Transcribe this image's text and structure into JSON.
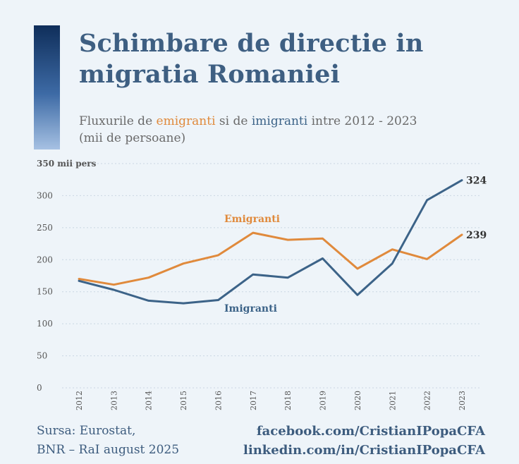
{
  "title": {
    "line1": "Schimbare de directie in",
    "line2": "migratia Romaniei"
  },
  "subtitle": {
    "prefix": "Fluxurile de ",
    "emigrants_word": "emigranti",
    "middle": " si de ",
    "immigrants_word": "imigranti",
    "suffix": " intre 2012 - 2023",
    "line2": "(mii de persoane)"
  },
  "source": {
    "line1": "Sursa: Eurostat,",
    "line2": "BNR – RaI august 2025"
  },
  "credits": {
    "facebook": "facebook.com/CristianIPopaCFA",
    "linkedin": "linkedin.com/in/CristianIPopaCFA"
  },
  "colors": {
    "emigranti": "#e08a3c",
    "imigranti": "#3c6388",
    "grid": "#c9d6e2",
    "axis_text": "#555555"
  },
  "chart_data": {
    "type": "line",
    "x": [
      "2012",
      "2013",
      "2014",
      "2015",
      "2016",
      "2017",
      "2018",
      "2019",
      "2020",
      "2021",
      "2022",
      "2023"
    ],
    "ylim": [
      0,
      350
    ],
    "yticks": [
      0,
      50,
      100,
      150,
      200,
      250,
      300,
      350
    ],
    "yticks_labels": [
      "0",
      "50",
      "100",
      "150",
      "200",
      "250",
      "300",
      "350 mii pers"
    ],
    "grid": true,
    "series": [
      {
        "name": "Emigranti",
        "color": "#e08a3c",
        "values": [
          170,
          161,
          172,
          194,
          207,
          242,
          231,
          233,
          186,
          216,
          201,
          239
        ],
        "end_label": "239"
      },
      {
        "name": "Imigranti",
        "color": "#3c6388",
        "values": [
          167,
          153,
          136,
          132,
          137,
          177,
          172,
          202,
          145,
          194,
          293,
          324
        ],
        "end_label": "324"
      }
    ]
  }
}
